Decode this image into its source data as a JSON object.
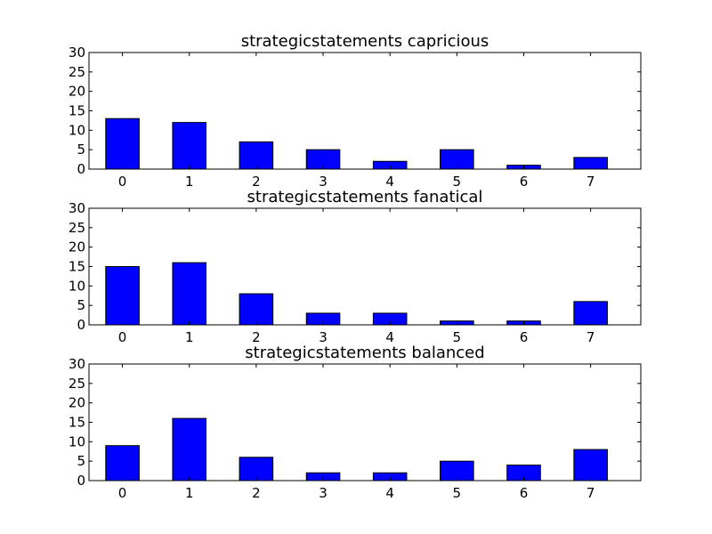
{
  "colors": {
    "bar": "#0000ff",
    "edge": "#000000",
    "background": "#ffffff"
  },
  "chart_data": [
    {
      "type": "bar",
      "title": "strategicstatements capricious",
      "categories": [
        "0",
        "1",
        "2",
        "3",
        "4",
        "5",
        "6",
        "7"
      ],
      "values": [
        13,
        12,
        7,
        5,
        2,
        5,
        1,
        3
      ],
      "ylim": [
        0,
        30
      ],
      "yticks": [
        0,
        5,
        10,
        15,
        20,
        25,
        30
      ],
      "grid": false
    },
    {
      "type": "bar",
      "title": "strategicstatements fanatical",
      "categories": [
        "0",
        "1",
        "2",
        "3",
        "4",
        "5",
        "6",
        "7"
      ],
      "values": [
        15,
        16,
        8,
        3,
        3,
        1,
        1,
        6
      ],
      "ylim": [
        0,
        30
      ],
      "yticks": [
        0,
        5,
        10,
        15,
        20,
        25,
        30
      ],
      "grid": false
    },
    {
      "type": "bar",
      "title": "strategicstatements balanced",
      "categories": [
        "0",
        "1",
        "2",
        "3",
        "4",
        "5",
        "6",
        "7"
      ],
      "values": [
        9,
        16,
        6,
        2,
        2,
        5,
        4,
        8
      ],
      "ylim": [
        0,
        30
      ],
      "yticks": [
        0,
        5,
        10,
        15,
        20,
        25,
        30
      ],
      "grid": false
    }
  ]
}
